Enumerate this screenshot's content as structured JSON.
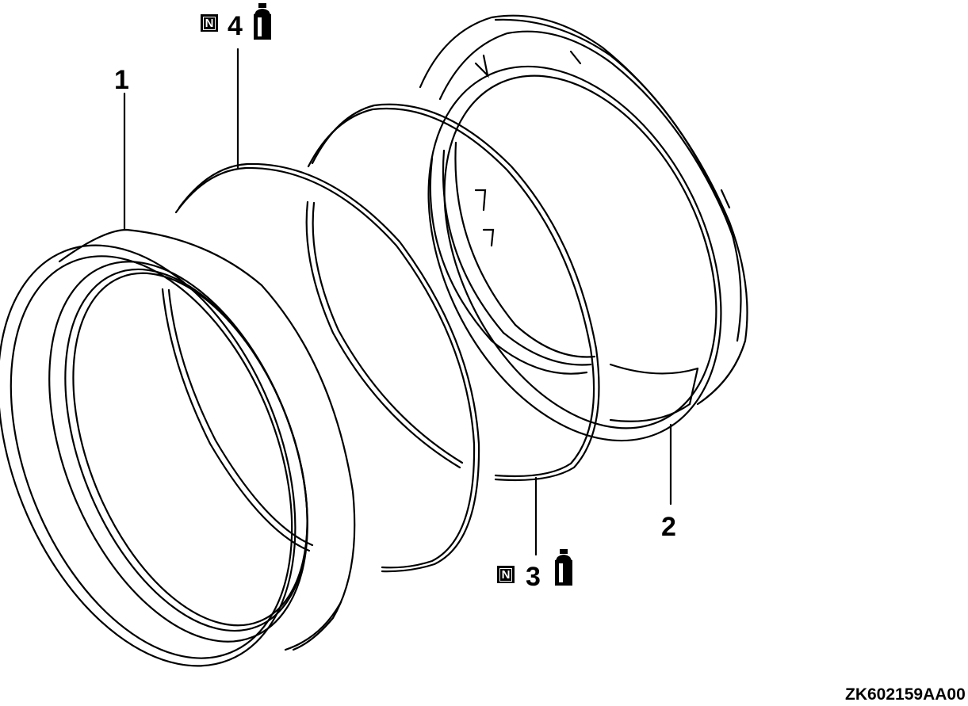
{
  "callouts": {
    "part1": "1",
    "part2": "2",
    "part3": "3",
    "part4": "4",
    "new_part_mark_3": "N",
    "new_part_mark_4": "N"
  },
  "icons": {
    "lubricant_3": "grease-tube-icon",
    "lubricant_4": "grease-tube-icon"
  },
  "figure_code": "ZK602159AA00"
}
